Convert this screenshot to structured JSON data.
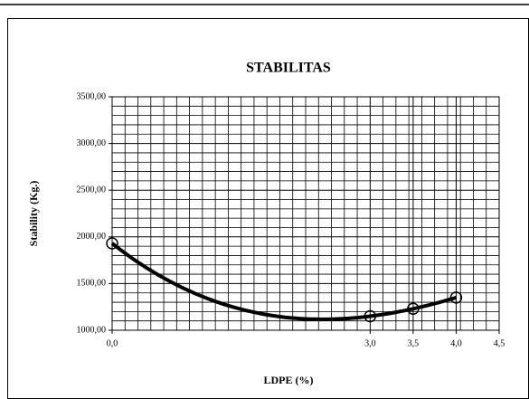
{
  "chart_data": {
    "type": "scatter",
    "title": "STABILITAS",
    "x_label": "LDPE (%)",
    "y_label": "Stability (Kg.)",
    "series": [
      {
        "name": "Stabilitas",
        "color": "#000000",
        "x": [
          0,
          3.0,
          3.5,
          4.0
        ],
        "values": [
          1930,
          1150,
          1230,
          1350
        ]
      }
    ],
    "trendline_order": 3,
    "xlim": [
      0,
      4.5
    ],
    "xticks": [
      {
        "value": 0,
        "label": "0,0"
      },
      {
        "value": 3.0,
        "label": "3,0"
      },
      {
        "value": 3.5,
        "label": "3,5"
      },
      {
        "value": 4.0,
        "label": "4,0"
      },
      {
        "value": 4.5,
        "label": "4,5"
      }
    ],
    "ylim": [
      1000,
      3500
    ],
    "yticks": [
      {
        "value": 1000,
        "label": "1000,00"
      },
      {
        "value": 1500,
        "label": "1500,00"
      },
      {
        "value": 2000,
        "label": "2000,00"
      },
      {
        "value": 2500,
        "label": "2500,00"
      },
      {
        "value": 3000,
        "label": "3000,00"
      },
      {
        "value": 3500,
        "label": "3500,00"
      }
    ],
    "x_minor_grid": [
      0.15,
      0.3,
      0.45,
      0.6,
      0.75,
      0.9,
      1.05,
      1.2,
      1.35,
      1.5,
      1.65,
      1.8,
      1.95,
      2.1,
      2.25,
      2.4,
      2.55,
      2.7,
      2.85,
      3.15,
      3.3,
      3.45,
      3.6,
      3.75,
      3.9,
      4.05,
      4.2,
      4.35
    ],
    "y_minor_grid": [
      1100,
      1200,
      1300,
      1400,
      1600,
      1700,
      1800,
      1900,
      2100,
      2200,
      2300,
      2400,
      2600,
      2700,
      2800,
      2900,
      3100,
      3200,
      3300,
      3400
    ],
    "grid": true
  }
}
